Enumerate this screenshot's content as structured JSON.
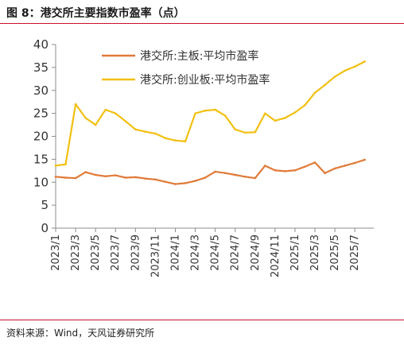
{
  "header": {
    "title": "图 8：港交所主要指数市盈率（点）"
  },
  "footer": {
    "source": "资料来源：Wind，天风证券研究所"
  },
  "colors": {
    "main_board": "#E07B39",
    "gem": "#F2C012",
    "rule": "#c8102e",
    "axis": "#8c8c8c"
  },
  "chart_data": {
    "type": "line",
    "title": "图 8：港交所主要指数市盈率（点）",
    "unit": "点",
    "ylim": [
      0,
      40
    ],
    "yticks": [
      0,
      5,
      10,
      15,
      20,
      25,
      30,
      35,
      40
    ],
    "x_range": [
      "2023/1",
      "2025/8"
    ],
    "xticks": [
      "2023/1",
      "2023/3",
      "2023/5",
      "2023/7",
      "2023/9",
      "2023/11",
      "2024/1",
      "2024/3",
      "2024/5",
      "2024/7",
      "2024/9",
      "2024/11",
      "2025/1",
      "2025/3",
      "2025/5",
      "2025/7"
    ],
    "grid": false,
    "legend_position": "top",
    "series": [
      {
        "name": "港交所:主板:平均市盈率",
        "color": "#E07B39",
        "points": [
          [
            "2023/1",
            11.2
          ],
          [
            "2023/2",
            11.0
          ],
          [
            "2023/3",
            10.9
          ],
          [
            "2023/4",
            12.2
          ],
          [
            "2023/5",
            11.6
          ],
          [
            "2023/6",
            11.3
          ],
          [
            "2023/7",
            11.5
          ],
          [
            "2023/8",
            11.0
          ],
          [
            "2023/9",
            11.1
          ],
          [
            "2023/10",
            10.8
          ],
          [
            "2023/11",
            10.6
          ],
          [
            "2023/12",
            10.1
          ],
          [
            "2024/1",
            9.6
          ],
          [
            "2024/2",
            9.8
          ],
          [
            "2024/3",
            10.3
          ],
          [
            "2024/4",
            11.0
          ],
          [
            "2024/5",
            12.3
          ],
          [
            "2024/6",
            12.0
          ],
          [
            "2024/7",
            11.6
          ],
          [
            "2024/8",
            11.2
          ],
          [
            "2024/9",
            10.9
          ],
          [
            "2024/10",
            13.6
          ],
          [
            "2024/11",
            12.6
          ],
          [
            "2024/12",
            12.4
          ],
          [
            "2025/1",
            12.6
          ],
          [
            "2025/2",
            13.4
          ],
          [
            "2025/3",
            14.3
          ],
          [
            "2025/4",
            12.0
          ],
          [
            "2025/5",
            13.0
          ],
          [
            "2025/6",
            13.6
          ],
          [
            "2025/7",
            14.2
          ],
          [
            "2025/8",
            14.9
          ]
        ]
      },
      {
        "name": "港交所:创业板:平均市盈率",
        "color": "#F2C012",
        "points": [
          [
            "2023/1",
            13.6
          ],
          [
            "2023/2",
            13.9
          ],
          [
            "2023/3",
            27.0
          ],
          [
            "2023/4",
            24.0
          ],
          [
            "2023/5",
            22.5
          ],
          [
            "2023/6",
            25.8
          ],
          [
            "2023/7",
            25.0
          ],
          [
            "2023/8",
            23.3
          ],
          [
            "2023/9",
            21.5
          ],
          [
            "2023/10",
            21.0
          ],
          [
            "2023/11",
            20.6
          ],
          [
            "2023/12",
            19.6
          ],
          [
            "2024/1",
            19.1
          ],
          [
            "2024/2",
            18.9
          ],
          [
            "2024/3",
            25.0
          ],
          [
            "2024/4",
            25.6
          ],
          [
            "2024/5",
            25.8
          ],
          [
            "2024/6",
            24.5
          ],
          [
            "2024/7",
            21.5
          ],
          [
            "2024/8",
            20.8
          ],
          [
            "2024/9",
            20.9
          ],
          [
            "2024/10",
            25.0
          ],
          [
            "2024/11",
            23.4
          ],
          [
            "2024/12",
            24.0
          ],
          [
            "2025/1",
            25.2
          ],
          [
            "2025/2",
            26.8
          ],
          [
            "2025/3",
            29.5
          ],
          [
            "2025/4",
            31.2
          ],
          [
            "2025/5",
            33.0
          ],
          [
            "2025/6",
            34.3
          ],
          [
            "2025/7",
            35.2
          ],
          [
            "2025/8",
            36.3
          ]
        ]
      }
    ]
  }
}
